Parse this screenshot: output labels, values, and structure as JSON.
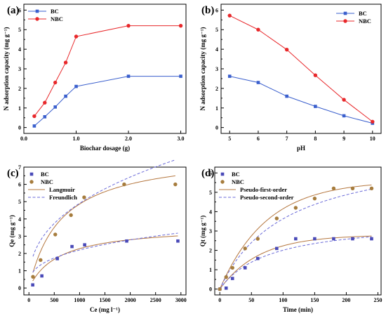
{
  "chart_data": [
    {
      "type": "line",
      "panel_label": "(a)",
      "xlabel": "Biochar dosage (g)",
      "ylabel": "N adsorption capacity (mg g⁻¹)",
      "xlim": [
        0,
        3.1
      ],
      "ylim": [
        -0.3,
        6.3
      ],
      "xticks": [
        0,
        1,
        2,
        3
      ],
      "xtick_labels": [
        "0.0",
        "1.0",
        "2.0",
        "3.0"
      ],
      "yticks": [
        0,
        1,
        2,
        3,
        4,
        5,
        6
      ],
      "yticks_minor": [
        0.5,
        1.5,
        2.5,
        3.5,
        4.5,
        5.5
      ],
      "legend_position": "top-left",
      "series": [
        {
          "name": "BC",
          "color": "#3a5fcd",
          "marker": "square",
          "x": [
            0.2,
            0.4,
            0.6,
            0.8,
            1.0,
            2.0,
            3.0
          ],
          "y": [
            0.08,
            0.55,
            1.05,
            1.6,
            2.1,
            2.62,
            2.62
          ]
        },
        {
          "name": "NBC",
          "color": "#e8282b",
          "marker": "circle",
          "x": [
            0.2,
            0.4,
            0.6,
            0.8,
            1.0,
            2.0,
            3.0
          ],
          "y": [
            0.58,
            1.27,
            2.3,
            3.32,
            4.65,
            5.2,
            5.2
          ]
        }
      ]
    },
    {
      "type": "line",
      "panel_label": "(b)",
      "xlabel": "pH",
      "ylabel": "N adsorption capacity (mg g⁻¹)",
      "xlim": [
        4.7,
        10.3
      ],
      "ylim": [
        -0.3,
        6.3
      ],
      "xticks": [
        5,
        6,
        7,
        8,
        9,
        10
      ],
      "xtick_labels": [
        "5",
        "6",
        "7",
        "8",
        "9",
        "10"
      ],
      "yticks": [
        0,
        1,
        2,
        3,
        4,
        5,
        6
      ],
      "yticks_minor": [
        0.5,
        1.5,
        2.5,
        3.5,
        4.5,
        5.5
      ],
      "legend_position": "top-right",
      "series": [
        {
          "name": "BC",
          "color": "#3a5fcd",
          "marker": "square",
          "x": [
            5,
            6,
            7,
            8,
            9,
            10
          ],
          "y": [
            2.62,
            2.3,
            1.6,
            1.08,
            0.6,
            0.22
          ]
        },
        {
          "name": "NBC",
          "color": "#e8282b",
          "marker": "circle",
          "x": [
            5,
            6,
            7,
            8,
            9,
            10
          ],
          "y": [
            5.72,
            5.0,
            3.98,
            2.67,
            1.42,
            0.3
          ]
        }
      ]
    },
    {
      "type": "scatter",
      "panel_label": "(c)",
      "xlabel": "Ce (mg l⁻¹)",
      "ylabel": "Qe (mg g⁻¹)",
      "xlim": [
        -100,
        3100
      ],
      "ylim": [
        -0.4,
        7
      ],
      "xticks": [
        0,
        500,
        1000,
        1500,
        2000,
        2500,
        3000
      ],
      "xtick_labels": [
        "0",
        "500",
        "1000",
        "1500",
        "2000",
        "2500",
        "3000"
      ],
      "yticks": [
        0,
        1,
        2,
        3,
        4,
        5,
        6,
        7
      ],
      "yticks_minor": [
        0.5,
        1.5,
        2.5,
        3.5,
        4.5,
        5.5,
        6.5
      ],
      "legend_position": "top-left",
      "series": [
        {
          "name": "BC",
          "color": "#4a4ab8",
          "marker": "square",
          "x": [
            75,
            255,
            560,
            850,
            1100,
            1930,
            2940
          ],
          "y": [
            0.18,
            0.7,
            1.7,
            2.4,
            2.5,
            2.72,
            2.72
          ]
        },
        {
          "name": "NBC",
          "color": "#a67c3d",
          "marker": "circle",
          "x": [
            80,
            230,
            520,
            830,
            1090,
            1880,
            2890
          ],
          "y": [
            0.65,
            1.62,
            3.1,
            4.22,
            5.25,
            6.0,
            6.0
          ]
        }
      ],
      "fits": [
        {
          "name": "Langmuir",
          "color": "#b5773f",
          "style": "solid",
          "model": "langmuir",
          "params": [
            {
              "qmax": 3.62,
              "k": 0.0017
            },
            {
              "qmax": 7.9,
              "k": 0.0016
            }
          ]
        },
        {
          "name": "Freundlich",
          "color": "#6a6ad8",
          "style": "dashed",
          "model": "freundlich",
          "params": [
            {
              "kf": 0.21,
              "n": 2.94
            },
            {
              "kf": 0.33,
              "n": 2.56
            }
          ]
        }
      ]
    },
    {
      "type": "scatter",
      "panel_label": "(d)",
      "xlabel": "Time (min)",
      "ylabel": "Qt (mg g⁻¹)",
      "xlim": [
        -8,
        255
      ],
      "ylim": [
        -0.3,
        6.3
      ],
      "xticks": [
        0,
        50,
        100,
        150,
        200,
        250
      ],
      "xtick_labels": [
        "0",
        "50",
        "100",
        "150",
        "200",
        "250"
      ],
      "yticks": [
        0,
        1,
        2,
        3,
        4,
        5,
        6
      ],
      "yticks_minor": [
        0.5,
        1.5,
        2.5,
        3.5,
        4.5,
        5.5
      ],
      "legend_position": "top-left",
      "series": [
        {
          "name": "BC",
          "color": "#4a4ab8",
          "marker": "square",
          "x": [
            0,
            10,
            20,
            40,
            60,
            90,
            120,
            150,
            180,
            210,
            240
          ],
          "y": [
            0.0,
            0.05,
            0.55,
            1.1,
            1.58,
            2.1,
            2.6,
            2.6,
            2.6,
            2.6,
            2.6
          ]
        },
        {
          "name": "NBC",
          "color": "#a67c3d",
          "marker": "circle",
          "x": [
            0,
            10,
            20,
            40,
            60,
            90,
            120,
            150,
            180,
            210,
            240
          ],
          "y": [
            0.0,
            0.62,
            1.1,
            2.1,
            2.6,
            3.65,
            4.2,
            4.68,
            5.2,
            5.2,
            5.2
          ]
        }
      ],
      "fits": [
        {
          "name": "Pseudo-first-order",
          "color": "#b5773f",
          "style": "solid",
          "model": "pfo",
          "params": [
            {
              "qe": 2.8,
              "k": 0.016
            },
            {
              "qe": 5.6,
              "k": 0.0135
            }
          ]
        },
        {
          "name": "Pseudo-second-order",
          "color": "#6a6ad8",
          "style": "dashed",
          "model": "pso",
          "params": [
            {
              "qe": 3.6,
              "k": 0.0035
            },
            {
              "qe": 7.4,
              "k": 0.0013
            }
          ]
        }
      ]
    }
  ]
}
